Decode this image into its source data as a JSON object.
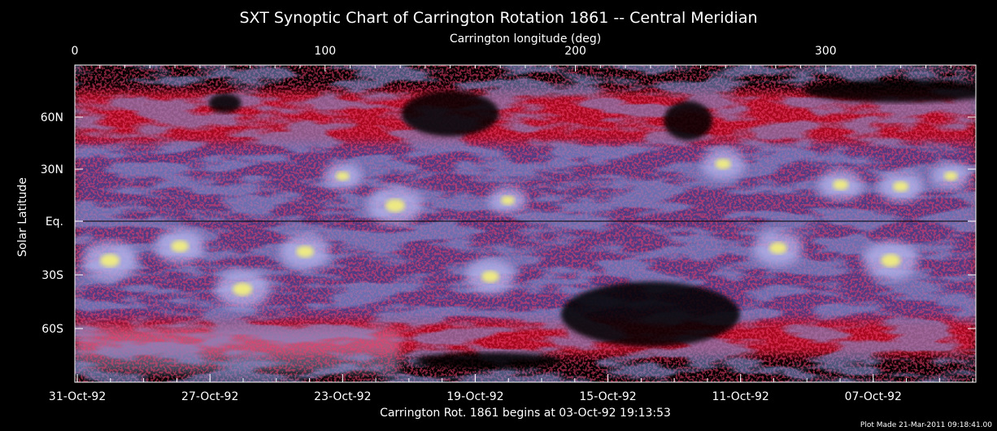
{
  "chart_data": {
    "type": "heatmap",
    "title": "SXT Synoptic Chart of Carrington Rotation 1861 -- Central Meridian",
    "x_top": {
      "label": "Carrington longitude (deg)",
      "range": [
        0,
        360
      ],
      "ticks": [
        0,
        100,
        200,
        300
      ],
      "tick_labels": [
        "0",
        "100",
        "200",
        "300"
      ]
    },
    "x_bottom": {
      "label": "Carrington Rot. 1861 begins at 03-Oct-92 19:13:53",
      "tick_labels": [
        "31-Oct-92",
        "27-Oct-92",
        "23-Oct-92",
        "19-Oct-92",
        "15-Oct-92",
        "11-Oct-92",
        "07-Oct-92"
      ],
      "tick_longitudes": [
        1,
        54,
        107,
        160,
        213,
        266,
        319
      ]
    },
    "y": {
      "label": "Solar Latitude",
      "range": [
        -90,
        90
      ],
      "ticks": [
        60,
        30,
        0,
        -30,
        -60
      ],
      "tick_labels": [
        "60N",
        "30N",
        "Eq.",
        "30S",
        "60S"
      ]
    },
    "bright_regions": [
      {
        "lon": 14,
        "lat": -22,
        "intensity": 1.0
      },
      {
        "lon": 42,
        "lat": -14,
        "intensity": 0.9
      },
      {
        "lon": 67,
        "lat": -38,
        "intensity": 1.0
      },
      {
        "lon": 92,
        "lat": -17,
        "intensity": 0.9
      },
      {
        "lon": 107,
        "lat": 26,
        "intensity": 0.7
      },
      {
        "lon": 128,
        "lat": 9,
        "intensity": 1.0
      },
      {
        "lon": 166,
        "lat": -31,
        "intensity": 0.9
      },
      {
        "lon": 173,
        "lat": 12,
        "intensity": 0.7
      },
      {
        "lon": 259,
        "lat": 33,
        "intensity": 0.8
      },
      {
        "lon": 281,
        "lat": -15,
        "intensity": 0.9
      },
      {
        "lon": 306,
        "lat": 21,
        "intensity": 0.8
      },
      {
        "lon": 330,
        "lat": 20,
        "intensity": 0.8
      },
      {
        "lon": 326,
        "lat": -22,
        "intensity": 1.0
      },
      {
        "lon": 350,
        "lat": 26,
        "intensity": 0.7
      }
    ],
    "colors": {
      "background": "#000000",
      "low": "#e0102a",
      "mid": "#3a4a9c",
      "high": "#b8b8f0",
      "peak": "#f5f27a"
    }
  },
  "footer": "Plot Made 21-Mar-2011 09:18:41.00"
}
